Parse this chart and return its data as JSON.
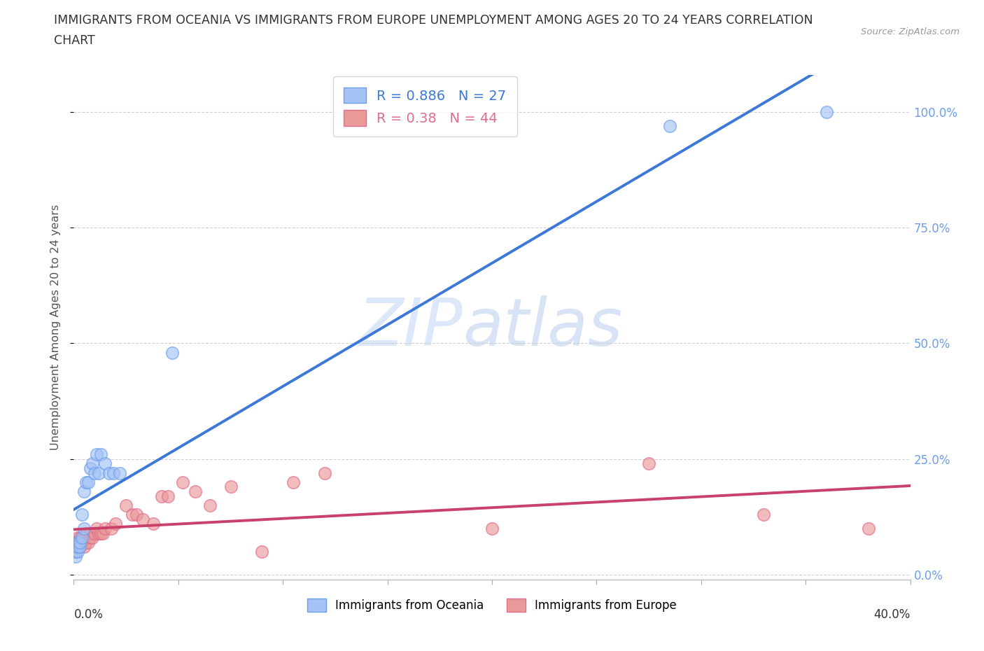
{
  "title_line1": "IMMIGRANTS FROM OCEANIA VS IMMIGRANTS FROM EUROPE UNEMPLOYMENT AMONG AGES 20 TO 24 YEARS CORRELATION",
  "title_line2": "CHART",
  "source": "Source: ZipAtlas.com",
  "ylabel": "Unemployment Among Ages 20 to 24 years",
  "xlim": [
    0.0,
    0.4
  ],
  "ylim": [
    -0.01,
    1.08
  ],
  "oceania_R": 0.886,
  "oceania_N": 27,
  "europe_R": 0.38,
  "europe_N": 44,
  "oceania_color": "#a4c2f4",
  "europe_color": "#ea9999",
  "oceania_edge_color": "#6d9eeb",
  "europe_edge_color": "#e06c8c",
  "oceania_line_color": "#3c78d8",
  "europe_line_color": "#c9406b",
  "right_label_color": "#6d9eeb",
  "watermark_zip_color": "#c5d9f5",
  "watermark_atlas_color": "#b8cef0",
  "oceania_x": [
    0.001,
    0.001,
    0.001,
    0.002,
    0.002,
    0.002,
    0.003,
    0.003,
    0.004,
    0.004,
    0.005,
    0.005,
    0.006,
    0.007,
    0.008,
    0.009,
    0.01,
    0.011,
    0.012,
    0.013,
    0.015,
    0.017,
    0.019,
    0.022,
    0.047,
    0.285,
    0.36
  ],
  "oceania_y": [
    0.04,
    0.05,
    0.06,
    0.05,
    0.06,
    0.07,
    0.06,
    0.07,
    0.08,
    0.13,
    0.1,
    0.18,
    0.2,
    0.2,
    0.23,
    0.24,
    0.22,
    0.26,
    0.22,
    0.26,
    0.24,
    0.22,
    0.22,
    0.22,
    0.48,
    0.97,
    1.0
  ],
  "europe_x": [
    0.001,
    0.001,
    0.002,
    0.002,
    0.002,
    0.003,
    0.003,
    0.003,
    0.004,
    0.004,
    0.005,
    0.005,
    0.006,
    0.006,
    0.007,
    0.008,
    0.008,
    0.009,
    0.01,
    0.011,
    0.012,
    0.013,
    0.014,
    0.015,
    0.018,
    0.02,
    0.025,
    0.028,
    0.03,
    0.033,
    0.038,
    0.042,
    0.045,
    0.052,
    0.058,
    0.065,
    0.075,
    0.09,
    0.105,
    0.12,
    0.2,
    0.275,
    0.33,
    0.38
  ],
  "europe_y": [
    0.05,
    0.07,
    0.06,
    0.07,
    0.08,
    0.06,
    0.07,
    0.08,
    0.07,
    0.08,
    0.06,
    0.08,
    0.07,
    0.09,
    0.07,
    0.08,
    0.09,
    0.08,
    0.09,
    0.1,
    0.09,
    0.09,
    0.09,
    0.1,
    0.1,
    0.11,
    0.15,
    0.13,
    0.13,
    0.12,
    0.11,
    0.17,
    0.17,
    0.2,
    0.18,
    0.15,
    0.19,
    0.05,
    0.2,
    0.22,
    0.1,
    0.24,
    0.13,
    0.1
  ],
  "yticks": [
    0.0,
    0.25,
    0.5,
    0.75,
    1.0
  ],
  "ytick_labels": [
    "0.0%",
    "25.0%",
    "50.0%",
    "75.0%",
    "100.0%"
  ],
  "xticks": [
    0.0,
    0.05,
    0.1,
    0.15,
    0.2,
    0.25,
    0.3,
    0.35,
    0.4
  ],
  "background_color": "#ffffff",
  "grid_color": "#d0d0d0"
}
